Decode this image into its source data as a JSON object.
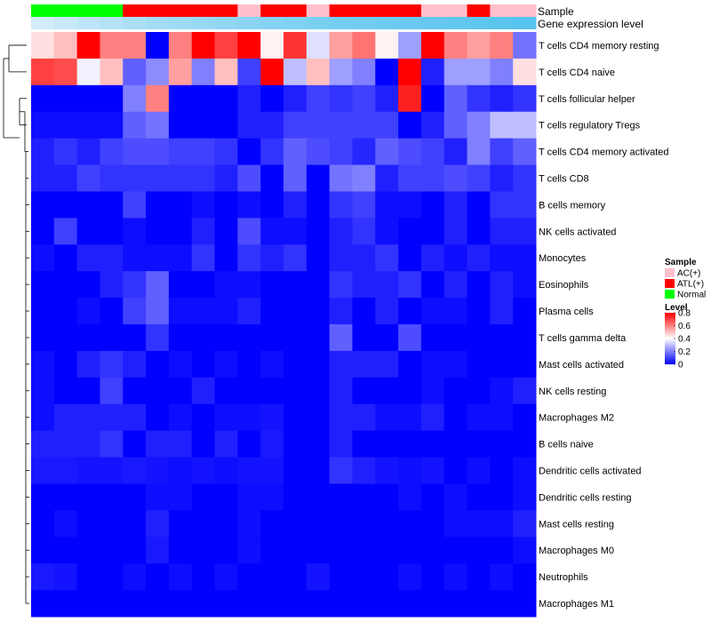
{
  "chart_data": {
    "type": "heatmap",
    "title": "",
    "annotation_tracks": [
      {
        "name": "Sample",
        "values": [
          "Normal",
          "Normal",
          "Normal",
          "Normal",
          "ATL(+)",
          "ATL(+)",
          "ATL(+)",
          "ATL(+)",
          "ATL(+)",
          "AC(+)",
          "ATL(+)",
          "ATL(+)",
          "AC(+)",
          "ATL(+)",
          "ATL(+)",
          "ATL(+)",
          "ATL(+)",
          "AC(+)",
          "AC(+)",
          "ATL(+)",
          "AC(+)",
          "AC(+)"
        ]
      },
      {
        "name": "Gene expression level",
        "values": [
          0.05,
          0.12,
          0.2,
          0.28,
          0.34,
          0.4,
          0.45,
          0.5,
          0.55,
          0.6,
          0.64,
          0.68,
          0.72,
          0.76,
          0.79,
          0.82,
          0.85,
          0.88,
          0.9,
          0.93,
          0.96,
          1.0
        ]
      }
    ],
    "rows": [
      "T cells CD4 memory resting",
      "T cells CD4 naive",
      "T cells follicular helper",
      "T cells regulatory  Tregs",
      "T cells CD4 memory activated",
      "T cells CD8",
      "B cells memory",
      "NK cells activated",
      "Monocytes",
      "Eosinophils",
      "Plasma cells",
      "T cells gamma delta",
      "Mast cells activated",
      "NK cells resting",
      "Macrophages M2",
      "B cells naive",
      "Dendritic cells activated",
      "Dendritic cells resting",
      "Mast cells resting",
      "Macrophages M0",
      "Neutrophils",
      "Macrophages M1"
    ],
    "values": [
      [
        0.45,
        0.5,
        0.8,
        0.6,
        0.6,
        0.0,
        0.6,
        0.8,
        0.7,
        0.8,
        0.42,
        0.72,
        0.35,
        0.55,
        0.62,
        0.42,
        0.25,
        0.8,
        0.6,
        0.55,
        0.6,
        0.18
      ],
      [
        0.7,
        0.68,
        0.38,
        0.5,
        0.15,
        0.22,
        0.55,
        0.2,
        0.5,
        0.1,
        0.8,
        0.3,
        0.5,
        0.25,
        0.2,
        0.0,
        0.8,
        0.05,
        0.25,
        0.25,
        0.2,
        0.45
      ],
      [
        0.0,
        0.0,
        0.0,
        0.0,
        0.2,
        0.6,
        0.0,
        0.0,
        0.0,
        0.05,
        0.0,
        0.05,
        0.1,
        0.08,
        0.1,
        0.05,
        0.75,
        0.0,
        0.15,
        0.08,
        0.05,
        0.08
      ],
      [
        0.02,
        0.02,
        0.02,
        0.02,
        0.15,
        0.18,
        0.0,
        0.0,
        0.0,
        0.05,
        0.05,
        0.1,
        0.1,
        0.1,
        0.1,
        0.1,
        0.0,
        0.05,
        0.15,
        0.2,
        0.3,
        0.3
      ],
      [
        0.05,
        0.08,
        0.05,
        0.1,
        0.12,
        0.12,
        0.1,
        0.1,
        0.08,
        0.0,
        0.08,
        0.15,
        0.12,
        0.1,
        0.06,
        0.15,
        0.12,
        0.1,
        0.05,
        0.2,
        0.1,
        0.15
      ],
      [
        0.05,
        0.05,
        0.1,
        0.08,
        0.08,
        0.08,
        0.08,
        0.08,
        0.05,
        0.12,
        0.0,
        0.15,
        0.0,
        0.18,
        0.2,
        0.05,
        0.1,
        0.1,
        0.12,
        0.1,
        0.05,
        0.08
      ],
      [
        0.0,
        0.0,
        0.0,
        0.0,
        0.1,
        0.0,
        0.0,
        0.02,
        0.0,
        0.02,
        0.0,
        0.05,
        0.0,
        0.08,
        0.1,
        0.02,
        0.02,
        0.0,
        0.05,
        0.0,
        0.08,
        0.08
      ],
      [
        0.0,
        0.1,
        0.0,
        0.0,
        0.02,
        0.0,
        0.0,
        0.05,
        0.0,
        0.12,
        0.02,
        0.02,
        0.0,
        0.05,
        0.08,
        0.02,
        0.0,
        0.0,
        0.05,
        0.0,
        0.05,
        0.05
      ],
      [
        0.02,
        0.0,
        0.05,
        0.05,
        0.02,
        0.02,
        0.02,
        0.08,
        0.0,
        0.08,
        0.05,
        0.08,
        0.0,
        0.05,
        0.05,
        0.08,
        0.0,
        0.05,
        0.02,
        0.05,
        0.02,
        0.02
      ],
      [
        0.0,
        0.0,
        0.0,
        0.05,
        0.08,
        0.15,
        0.0,
        0.0,
        0.02,
        0.02,
        0.0,
        0.0,
        0.0,
        0.08,
        0.05,
        0.05,
        0.08,
        0.0,
        0.05,
        0.0,
        0.05,
        0.02
      ],
      [
        0.0,
        0.0,
        0.02,
        0.0,
        0.1,
        0.15,
        0.02,
        0.02,
        0.02,
        0.05,
        0.0,
        0.0,
        0.0,
        0.05,
        0.0,
        0.05,
        0.0,
        0.02,
        0.02,
        0.0,
        0.05,
        0.0
      ],
      [
        0.0,
        0.0,
        0.0,
        0.0,
        0.0,
        0.08,
        0.0,
        0.0,
        0.0,
        0.0,
        0.0,
        0.0,
        0.0,
        0.15,
        0.0,
        0.0,
        0.12,
        0.0,
        0.0,
        0.0,
        0.0,
        0.0
      ],
      [
        0.02,
        0.0,
        0.05,
        0.08,
        0.05,
        0.0,
        0.02,
        0.0,
        0.02,
        0.0,
        0.02,
        0.0,
        0.0,
        0.05,
        0.05,
        0.05,
        0.0,
        0.02,
        0.02,
        0.0,
        0.0,
        0.0
      ],
      [
        0.02,
        0.0,
        0.0,
        0.1,
        0.0,
        0.0,
        0.0,
        0.05,
        0.0,
        0.0,
        0.0,
        0.0,
        0.0,
        0.05,
        0.0,
        0.0,
        0.0,
        0.02,
        0.0,
        0.0,
        0.02,
        0.05
      ],
      [
        0.02,
        0.05,
        0.05,
        0.05,
        0.05,
        0.0,
        0.02,
        0.0,
        0.02,
        0.02,
        0.03,
        0.0,
        0.0,
        0.05,
        0.05,
        0.02,
        0.02,
        0.05,
        0.0,
        0.02,
        0.02,
        0.0
      ],
      [
        0.05,
        0.05,
        0.05,
        0.08,
        0.0,
        0.05,
        0.05,
        0.0,
        0.05,
        0.0,
        0.04,
        0.0,
        0.0,
        0.05,
        0.0,
        0.0,
        0.0,
        0.0,
        0.0,
        0.0,
        0.0,
        0.0
      ],
      [
        0.04,
        0.04,
        0.03,
        0.03,
        0.04,
        0.03,
        0.02,
        0.03,
        0.02,
        0.03,
        0.03,
        0.0,
        0.0,
        0.08,
        0.05,
        0.03,
        0.02,
        0.03,
        0.0,
        0.02,
        0.0,
        0.02
      ],
      [
        0.0,
        0.0,
        0.0,
        0.0,
        0.0,
        0.02,
        0.02,
        0.0,
        0.0,
        0.02,
        0.02,
        0.0,
        0.0,
        0.0,
        0.0,
        0.0,
        0.02,
        0.0,
        0.02,
        0.0,
        0.0,
        0.02
      ],
      [
        0.0,
        0.02,
        0.0,
        0.0,
        0.0,
        0.05,
        0.0,
        0.0,
        0.0,
        0.02,
        0.0,
        0.0,
        0.0,
        0.0,
        0.0,
        0.0,
        0.0,
        0.0,
        0.02,
        0.02,
        0.02,
        0.05
      ],
      [
        0.0,
        0.0,
        0.0,
        0.0,
        0.0,
        0.04,
        0.0,
        0.0,
        0.0,
        0.02,
        0.0,
        0.0,
        0.0,
        0.0,
        0.0,
        0.0,
        0.0,
        0.0,
        0.0,
        0.0,
        0.0,
        0.02
      ],
      [
        0.04,
        0.03,
        0.0,
        0.0,
        0.02,
        0.0,
        0.02,
        0.0,
        0.02,
        0.0,
        0.0,
        0.0,
        0.03,
        0.0,
        0.0,
        0.0,
        0.02,
        0.0,
        0.02,
        0.0,
        0.02,
        0.0
      ],
      [
        0.0,
        0.0,
        0.0,
        0.0,
        0.0,
        0.0,
        0.0,
        0.0,
        0.0,
        0.0,
        0.0,
        0.0,
        0.0,
        0.0,
        0.0,
        0.0,
        0.0,
        0.0,
        0.0,
        0.0,
        0.0,
        0.0
      ]
    ],
    "legend": {
      "sample_title": "Sample",
      "sample_entries": [
        {
          "label": "AC(+)",
          "color": "#ffc0cb"
        },
        {
          "label": "ATL(+)",
          "color": "#ff0000"
        },
        {
          "label": "Normal",
          "color": "#00ff00"
        }
      ],
      "level_title": "Level",
      "level_ticks": [
        "0.8",
        "0.6",
        "0.4",
        "0.2",
        "0"
      ],
      "level_tick_values": [
        0.8,
        0.6,
        0.4,
        0.2,
        0
      ],
      "level_range": [
        0,
        0.8
      ]
    },
    "color_scale": {
      "low": "#0000ff",
      "mid": "#ffffff",
      "high": "#ff0000",
      "midpoint": 0.4
    },
    "expression_colors": {
      "low": "#d8eef9",
      "high": "#56c3ee"
    }
  }
}
